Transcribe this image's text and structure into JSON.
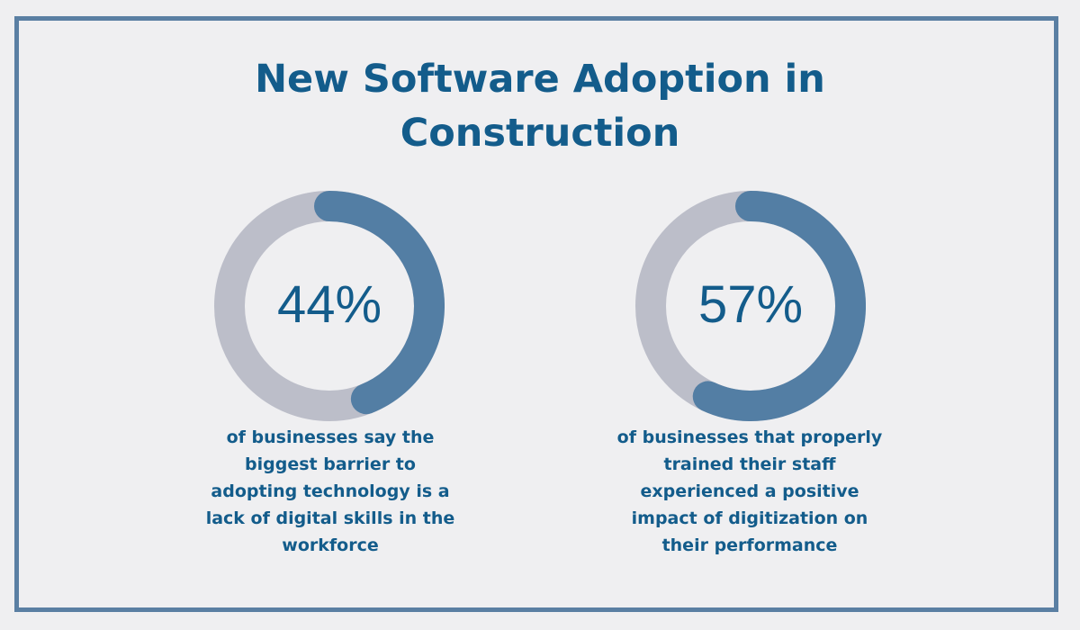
{
  "title_lines": [
    "New Software Adoption in",
    "Construction"
  ],
  "colors": {
    "background": "#efeff1",
    "border": "#5a7fa3",
    "text": "#135c8b",
    "track": "#bcbec9",
    "fill": "#537ea4"
  },
  "chart_data": [
    {
      "type": "pie",
      "variant": "donut",
      "value": 44,
      "max": 100,
      "label": "44%",
      "caption_lines": [
        "of businesses say the",
        "biggest barrier to",
        "adopting technology is a",
        "lack of digital skills in the",
        "workforce"
      ]
    },
    {
      "type": "pie",
      "variant": "donut",
      "value": 57,
      "max": 100,
      "label": "57%",
      "caption_lines": [
        "of businesses that properly",
        "trained their staff",
        "experienced a positive",
        "impact of digitization on",
        "their performance"
      ]
    }
  ]
}
